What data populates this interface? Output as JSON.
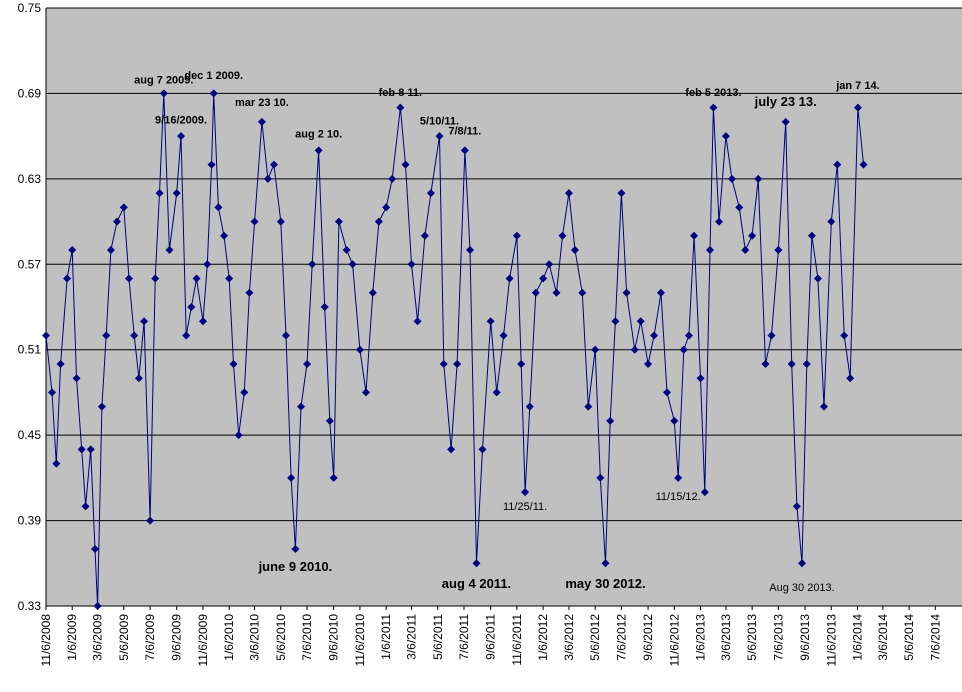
{
  "chart_data": {
    "type": "line",
    "title": "",
    "xlabel": "",
    "ylabel": "",
    "ylim": [
      0.33,
      0.75
    ],
    "xlim": [
      "11/6/2008",
      "9/6/2014"
    ],
    "y_ticks": [
      "0.33",
      "0.39",
      "0.45",
      "0.51",
      "0.57",
      "0.63",
      "0.69",
      "0.75"
    ],
    "x_ticks": [
      "11/6/2008",
      "1/6/2009",
      "3/6/2009",
      "5/6/2009",
      "7/6/2009",
      "9/6/2009",
      "11/6/2009",
      "1/6/2010",
      "3/6/2010",
      "5/6/2010",
      "7/6/2010",
      "9/6/2010",
      "11/6/2010",
      "1/6/2011",
      "3/6/2011",
      "5/6/2011",
      "7/6/2011",
      "9/6/2011",
      "11/6/2011",
      "1/6/2012",
      "3/6/2012",
      "5/6/2012",
      "7/6/2012",
      "9/6/2012",
      "11/6/2012",
      "1/6/2013",
      "3/6/2013",
      "5/6/2013",
      "7/6/2013",
      "9/6/2013",
      "11/6/2013",
      "1/6/2014",
      "3/6/2014",
      "5/6/2014",
      "7/6/2014"
    ],
    "grid": "horizontal",
    "line_color": "#000080",
    "marker": "diamond",
    "plot_background": "#c0c0c0",
    "series": [
      {
        "points": [
          [
            "11/6/2008",
            0.52
          ],
          [
            "11/20/2008",
            0.48
          ],
          [
            "11/30/2008",
            0.43
          ],
          [
            "12/10/2008",
            0.5
          ],
          [
            "12/25/2008",
            0.56
          ],
          [
            "1/6/2009",
            0.58
          ],
          [
            "1/16/2009",
            0.49
          ],
          [
            "1/28/2009",
            0.44
          ],
          [
            "2/6/2009",
            0.4
          ],
          [
            "2/18/2009",
            0.44
          ],
          [
            "2/28/2009",
            0.37
          ],
          [
            "3/6/2009",
            0.33
          ],
          [
            "3/16/2009",
            0.47
          ],
          [
            "3/26/2009",
            0.52
          ],
          [
            "4/6/2009",
            0.58
          ],
          [
            "4/20/2009",
            0.6
          ],
          [
            "5/6/2009",
            0.61
          ],
          [
            "5/18/2009",
            0.56
          ],
          [
            "5/30/2009",
            0.52
          ],
          [
            "6/10/2009",
            0.49
          ],
          [
            "6/22/2009",
            0.53
          ],
          [
            "7/6/2009",
            0.39
          ],
          [
            "7/18/2009",
            0.56
          ],
          [
            "7/28/2009",
            0.62
          ],
          [
            "8/7/2009",
            0.69
          ],
          [
            "8/20/2009",
            0.58
          ],
          [
            "9/6/2009",
            0.62
          ],
          [
            "9/16/2009",
            0.66
          ],
          [
            "9/28/2009",
            0.52
          ],
          [
            "10/10/2009",
            0.54
          ],
          [
            "10/22/2009",
            0.56
          ],
          [
            "11/6/2009",
            0.53
          ],
          [
            "11/16/2009",
            0.57
          ],
          [
            "11/26/2009",
            0.64
          ],
          [
            "12/1/2009",
            0.69
          ],
          [
            "12/12/2009",
            0.61
          ],
          [
            "12/25/2009",
            0.59
          ],
          [
            "1/6/2010",
            0.56
          ],
          [
            "1/16/2010",
            0.5
          ],
          [
            "1/28/2010",
            0.45
          ],
          [
            "2/10/2010",
            0.48
          ],
          [
            "2/22/2010",
            0.55
          ],
          [
            "3/6/2010",
            0.6
          ],
          [
            "3/23/2010",
            0.67
          ],
          [
            "4/6/2010",
            0.63
          ],
          [
            "4/20/2010",
            0.64
          ],
          [
            "5/6/2010",
            0.6
          ],
          [
            "5/18/2010",
            0.52
          ],
          [
            "5/30/2010",
            0.42
          ],
          [
            "6/9/2010",
            0.37
          ],
          [
            "6/22/2010",
            0.47
          ],
          [
            "7/6/2010",
            0.5
          ],
          [
            "7/18/2010",
            0.57
          ],
          [
            "8/2/2010",
            0.65
          ],
          [
            "8/16/2010",
            0.54
          ],
          [
            "8/28/2010",
            0.46
          ],
          [
            "9/6/2010",
            0.42
          ],
          [
            "9/18/2010",
            0.6
          ],
          [
            "10/6/2010",
            0.58
          ],
          [
            "10/20/2010",
            0.57
          ],
          [
            "11/6/2010",
            0.51
          ],
          [
            "11/20/2010",
            0.48
          ],
          [
            "12/6/2010",
            0.55
          ],
          [
            "12/20/2010",
            0.6
          ],
          [
            "1/6/2011",
            0.61
          ],
          [
            "1/20/2011",
            0.63
          ],
          [
            "2/8/2011",
            0.68
          ],
          [
            "2/20/2011",
            0.64
          ],
          [
            "3/6/2011",
            0.57
          ],
          [
            "3/20/2011",
            0.53
          ],
          [
            "4/6/2011",
            0.59
          ],
          [
            "4/20/2011",
            0.62
          ],
          [
            "5/10/2011",
            0.66
          ],
          [
            "5/20/2011",
            0.5
          ],
          [
            "6/6/2011",
            0.44
          ],
          [
            "6/20/2011",
            0.5
          ],
          [
            "7/8/2011",
            0.65
          ],
          [
            "7/20/2011",
            0.58
          ],
          [
            "8/4/2011",
            0.36
          ],
          [
            "8/18/2011",
            0.44
          ],
          [
            "9/6/2011",
            0.53
          ],
          [
            "9/20/2011",
            0.48
          ],
          [
            "10/6/2011",
            0.52
          ],
          [
            "10/20/2011",
            0.56
          ],
          [
            "11/6/2011",
            0.59
          ],
          [
            "11/16/2011",
            0.5
          ],
          [
            "11/25/2011",
            0.41
          ],
          [
            "12/6/2011",
            0.47
          ],
          [
            "12/20/2011",
            0.55
          ],
          [
            "1/6/2012",
            0.56
          ],
          [
            "1/20/2012",
            0.57
          ],
          [
            "2/6/2012",
            0.55
          ],
          [
            "2/20/2012",
            0.59
          ],
          [
            "3/6/2012",
            0.62
          ],
          [
            "3/20/2012",
            0.58
          ],
          [
            "4/6/2012",
            0.55
          ],
          [
            "4/20/2012",
            0.47
          ],
          [
            "5/6/2012",
            0.51
          ],
          [
            "5/18/2012",
            0.42
          ],
          [
            "5/30/2012",
            0.36
          ],
          [
            "6/10/2012",
            0.46
          ],
          [
            "6/22/2012",
            0.53
          ],
          [
            "7/6/2012",
            0.62
          ],
          [
            "7/18/2012",
            0.55
          ],
          [
            "8/6/2012",
            0.51
          ],
          [
            "8/20/2012",
            0.53
          ],
          [
            "9/6/2012",
            0.5
          ],
          [
            "9/20/2012",
            0.52
          ],
          [
            "10/6/2012",
            0.55
          ],
          [
            "10/20/2012",
            0.48
          ],
          [
            "11/6/2012",
            0.46
          ],
          [
            "11/15/2012",
            0.42
          ],
          [
            "11/28/2012",
            0.51
          ],
          [
            "12/10/2012",
            0.52
          ],
          [
            "12/22/2012",
            0.59
          ],
          [
            "1/6/2013",
            0.49
          ],
          [
            "1/16/2013",
            0.41
          ],
          [
            "1/28/2013",
            0.58
          ],
          [
            "2/5/2013",
            0.68
          ],
          [
            "2/18/2013",
            0.6
          ],
          [
            "3/6/2013",
            0.66
          ],
          [
            "3/20/2013",
            0.63
          ],
          [
            "4/6/2013",
            0.61
          ],
          [
            "4/20/2013",
            0.58
          ],
          [
            "5/6/2013",
            0.59
          ],
          [
            "5/20/2013",
            0.63
          ],
          [
            "6/6/2013",
            0.5
          ],
          [
            "6/20/2013",
            0.52
          ],
          [
            "7/6/2013",
            0.58
          ],
          [
            "7/23/2013",
            0.67
          ],
          [
            "8/6/2013",
            0.5
          ],
          [
            "8/18/2013",
            0.4
          ],
          [
            "8/30/2013",
            0.36
          ],
          [
            "9/10/2013",
            0.5
          ],
          [
            "9/22/2013",
            0.59
          ],
          [
            "10/6/2013",
            0.56
          ],
          [
            "10/20/2013",
            0.47
          ],
          [
            "11/6/2013",
            0.6
          ],
          [
            "11/20/2013",
            0.64
          ],
          [
            "12/6/2013",
            0.52
          ],
          [
            "12/20/2013",
            0.49
          ],
          [
            "1/7/2014",
            0.68
          ],
          [
            "1/20/2014",
            0.64
          ]
        ]
      }
    ],
    "annotations": [
      {
        "text": "aug 7 2009.",
        "date": "8/7/2009",
        "y": 0.69,
        "size": "normal",
        "bold": true
      },
      {
        "text": "dec 1 2009.",
        "date": "12/1/2009",
        "y": 0.693,
        "size": "normal",
        "bold": true
      },
      {
        "text": "9/16/2009.",
        "date": "9/16/2009",
        "y": 0.662,
        "size": "normal",
        "bold": true
      },
      {
        "text": "mar 23 10.",
        "date": "3/23/2010",
        "y": 0.674,
        "size": "normal",
        "bold": true
      },
      {
        "text": "june 9 2010.",
        "date": "6/9/2010",
        "y": 0.37,
        "size": "big",
        "bold": true
      },
      {
        "text": "aug 2 10.",
        "date": "8/2/2010",
        "y": 0.652,
        "size": "normal",
        "bold": true
      },
      {
        "text": "feb 8 11.",
        "date": "2/8/2011",
        "y": 0.681,
        "size": "normal",
        "bold": true
      },
      {
        "text": "5/10/11.",
        "date": "5/10/2011",
        "y": 0.661,
        "size": "normal",
        "bold": true
      },
      {
        "text": "7/8/11.",
        "date": "7/8/2011",
        "y": 0.654,
        "size": "normal",
        "bold": true
      },
      {
        "text": "aug 4 2011.",
        "date": "8/4/2011",
        "y": 0.358,
        "size": "big",
        "bold": true
      },
      {
        "text": "11/25/11.",
        "date": "11/25/2011",
        "y": 0.413,
        "size": "normal",
        "bold": false
      },
      {
        "text": "may 30 2012.",
        "date": "5/30/2012",
        "y": 0.358,
        "size": "big",
        "bold": true
      },
      {
        "text": "11/15/12.",
        "date": "11/15/2012",
        "y": 0.42,
        "size": "normal",
        "bold": false
      },
      {
        "text": "feb 5 2013.",
        "date": "2/5/2013",
        "y": 0.681,
        "size": "normal",
        "bold": true
      },
      {
        "text": "july 23 13.",
        "date": "7/23/2013",
        "y": 0.674,
        "size": "big",
        "bold": true
      },
      {
        "text": "Aug 30 2013.",
        "date": "8/30/2013",
        "y": 0.356,
        "size": "normal",
        "bold": false
      },
      {
        "text": "jan 7 14.",
        "date": "1/7/2014",
        "y": 0.686,
        "size": "normal",
        "bold": true
      }
    ]
  }
}
